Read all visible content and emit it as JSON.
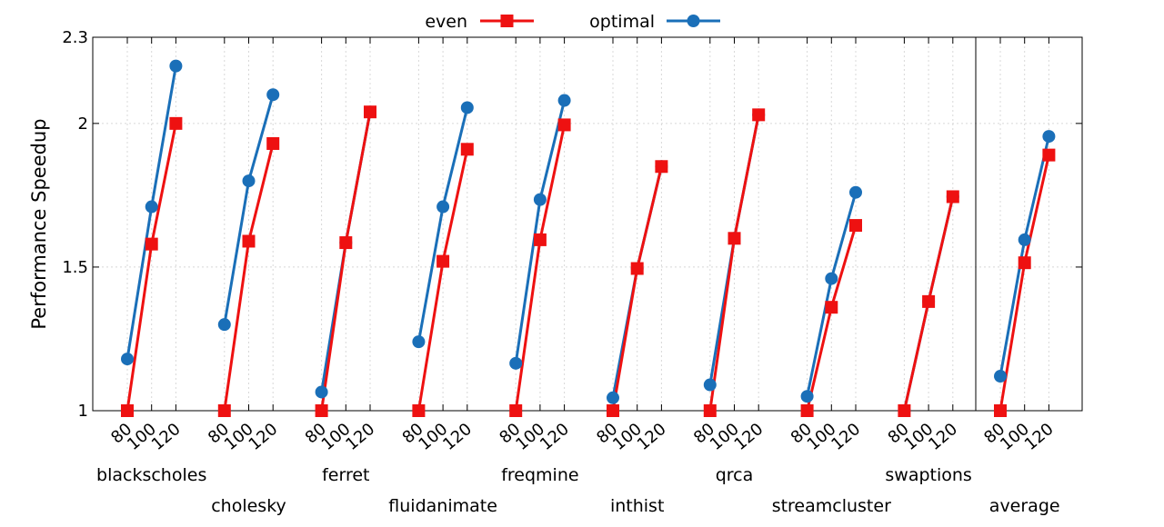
{
  "chart_data": {
    "type": "line",
    "title": "",
    "ylabel": "Performance Speedup",
    "xlabel": "",
    "ylim": [
      1,
      2.3
    ],
    "yticks": [
      1,
      1.5,
      2,
      2.3
    ],
    "ytick_labels": [
      "1",
      "1.5",
      "2",
      "2.3"
    ],
    "x_tick_labels": [
      "80",
      "100",
      "120"
    ],
    "grid": true,
    "legend_position": "top",
    "colors": {
      "even": "#ee1111",
      "optimal": "#1a6fb8"
    },
    "series": [
      {
        "name": "even",
        "marker": "square"
      },
      {
        "name": "optimal",
        "marker": "circle"
      }
    ],
    "groups": [
      {
        "name": "blackscholes",
        "even": [
          1.0,
          1.58,
          2.0
        ],
        "optimal": [
          1.18,
          1.71,
          2.2
        ]
      },
      {
        "name": "cholesky",
        "even": [
          1.0,
          1.59,
          1.93
        ],
        "optimal": [
          1.3,
          1.8,
          2.1
        ]
      },
      {
        "name": "ferret",
        "even": [
          1.0,
          1.585,
          2.04
        ],
        "optimal": [
          1.065,
          1.585,
          2.04
        ]
      },
      {
        "name": "fluidanimate",
        "even": [
          1.0,
          1.52,
          1.91
        ],
        "optimal": [
          1.24,
          1.71,
          2.055
        ]
      },
      {
        "name": "freqmine",
        "even": [
          1.0,
          1.595,
          1.995
        ],
        "optimal": [
          1.165,
          1.735,
          2.08
        ]
      },
      {
        "name": "inthist",
        "even": [
          1.0,
          1.495,
          1.85
        ],
        "optimal": [
          1.045,
          1.495,
          1.85
        ]
      },
      {
        "name": "qrca",
        "even": [
          1.0,
          1.6,
          2.03
        ],
        "optimal": [
          1.09,
          1.6,
          2.03
        ]
      },
      {
        "name": "streamcluster",
        "even": [
          1.0,
          1.36,
          1.645
        ],
        "optimal": [
          1.05,
          1.46,
          1.76
        ]
      },
      {
        "name": "swaptions",
        "even": [
          1.0,
          1.38,
          1.745
        ],
        "optimal": [
          1.0,
          1.38,
          1.745
        ]
      },
      {
        "name": "average",
        "even": [
          1.0,
          1.515,
          1.89
        ],
        "optimal": [
          1.12,
          1.595,
          1.955
        ]
      }
    ]
  }
}
